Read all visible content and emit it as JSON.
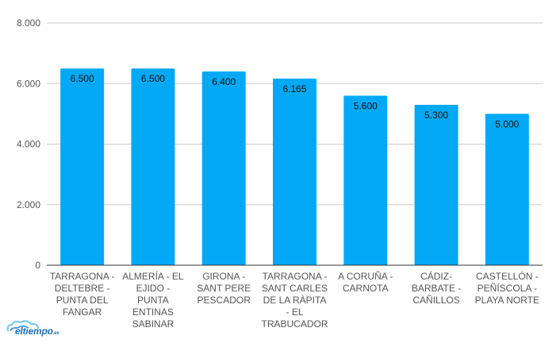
{
  "chart_data": {
    "type": "bar",
    "categories": [
      [
        "TARRAGONA -",
        "DELTEBRE -",
        "PUNTA DEL",
        "FANGAR"
      ],
      [
        "ALMERÍA - EL",
        "EJIDO -",
        "PUNTA",
        "ENTINAS",
        "SABINAR"
      ],
      [
        "GIRONA -",
        "SANT PERE",
        "PESCADOR"
      ],
      [
        "TARRAGONA -",
        "SANT CARLES",
        "DE LA RÀPITA",
        "- EL",
        "TRABUCADOR"
      ],
      [
        "A CORUÑA -",
        "CARNOTA"
      ],
      [
        "CÁDIZ-",
        "BARBATE -",
        "CAÑILLOS"
      ],
      [
        "CASTELLÓN -",
        "PEÑÍSCOLA -",
        "PLAYA NORTE"
      ]
    ],
    "values": [
      6500,
      6500,
      6400,
      6165,
      5600,
      5300,
      5000
    ],
    "value_labels": [
      "6.500",
      "6.500",
      "6.400",
      "6.165",
      "5.600",
      "5.300",
      "5.000"
    ],
    "yticks": [
      0,
      2000,
      4000,
      6000,
      8000
    ],
    "ytick_labels": [
      "0",
      "2.000",
      "4.000",
      "6.000",
      "8.000"
    ],
    "ylim": [
      0,
      8000
    ],
    "title": "",
    "xlabel": "",
    "ylabel": "",
    "grid": true,
    "legend": "none",
    "bar_color": "#03a9f4",
    "grid_color": "#cccccc",
    "axis_color": "#333333",
    "label_color": "#555555"
  },
  "branding": {
    "logo_text": "eltiempo",
    "logo_tld": ".es",
    "logo_icon": "cloud-icon"
  }
}
